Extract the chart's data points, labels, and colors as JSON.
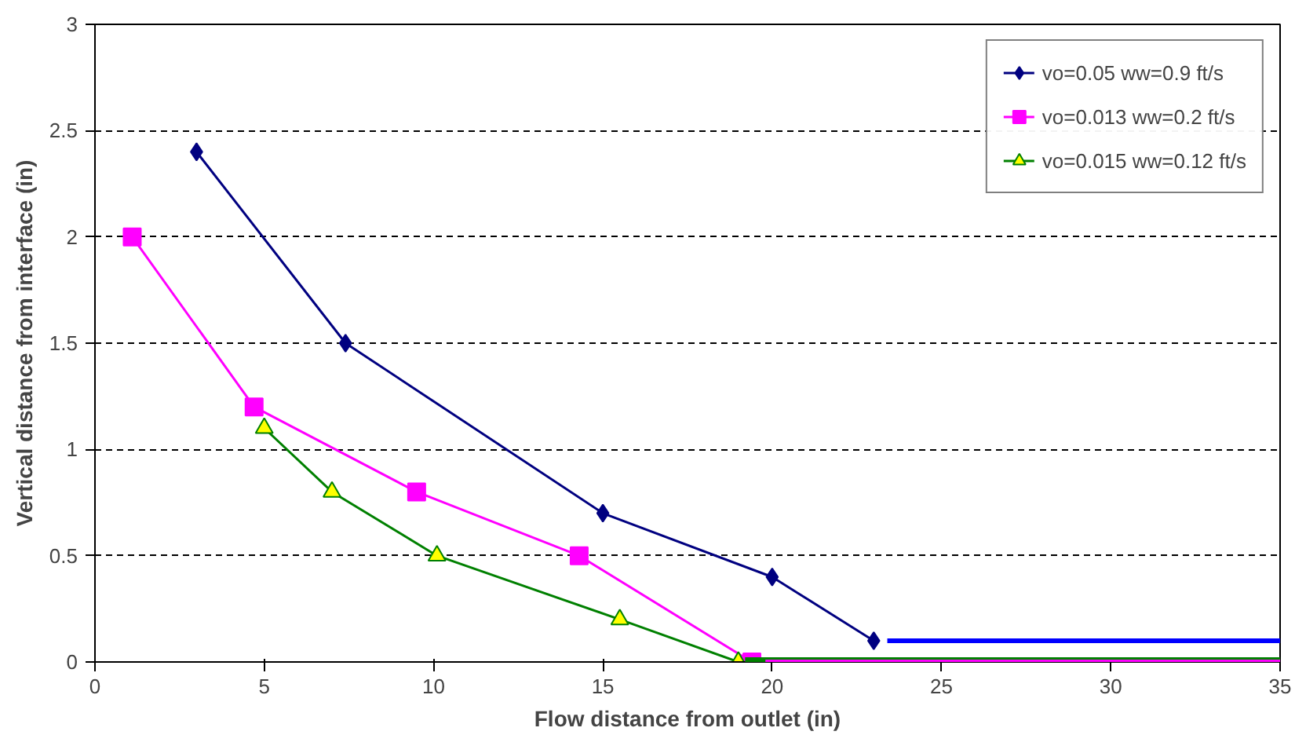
{
  "chart_data": {
    "type": "line",
    "xlabel": "Flow distance from outlet (in)",
    "ylabel": "Vertical distance from interface (in)",
    "xlim": [
      0,
      35
    ],
    "xticks": [
      0,
      5,
      10,
      15,
      20,
      25,
      30,
      35
    ],
    "ylim": [
      0,
      3
    ],
    "yticks": [
      0,
      0.5,
      1,
      1.5,
      2,
      2.5,
      3
    ],
    "grid": "y",
    "legend": "top right",
    "ref_lines": [
      {
        "axis": "y",
        "value": 0,
        "color": "#008000"
      },
      {
        "axis": "y",
        "value": 0,
        "color": "#ff00ff"
      },
      {
        "axis": "y",
        "value": 0.1,
        "color": "#0000ff"
      }
    ],
    "series": [
      {
        "name": "vo=0.05 ww=0.9 ft/s",
        "color": "#000080",
        "marker": "diamond",
        "x": [
          3,
          7.4,
          15,
          20,
          23
        ],
        "values": [
          2.4,
          1.5,
          0.7,
          0.4,
          0.1
        ]
      },
      {
        "name": "vo=0.013 ww=0.2 ft/s",
        "color": "#ff00ff",
        "marker": "square",
        "x": [
          1.1,
          4.7,
          9.5,
          14.3,
          19.4
        ],
        "values": [
          2.0,
          1.2,
          0.8,
          0.5,
          0.0
        ]
      },
      {
        "name": "vo=0.015 ww=0.12 ft/s",
        "color": "#008000",
        "marker": "triangle",
        "x": [
          5,
          7,
          10.1,
          15.5,
          19
        ],
        "values": [
          1.1,
          0.8,
          0.5,
          0.2,
          0.0
        ]
      }
    ]
  }
}
